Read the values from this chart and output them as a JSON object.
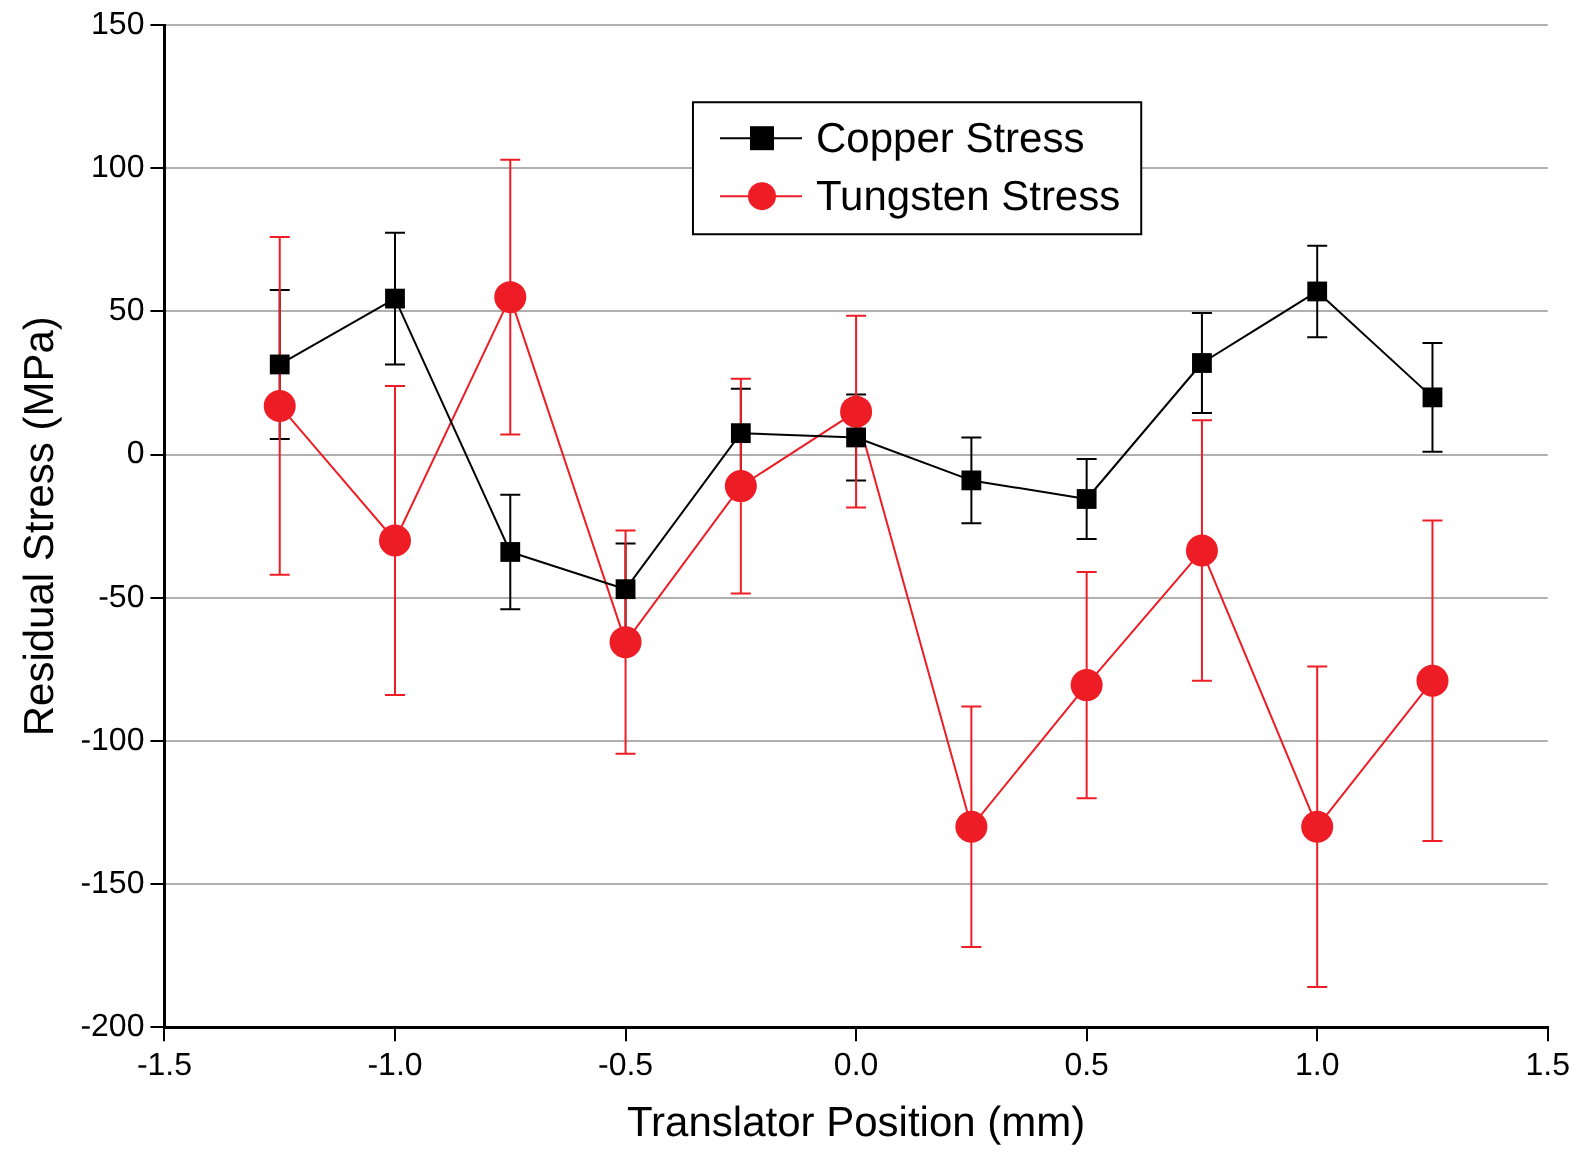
{
  "chart_data": {
    "type": "line",
    "xlabel": "Translator Position (mm)",
    "ylabel": "Residual Stress (MPa)",
    "x": [
      -1.25,
      -1.0,
      -0.75,
      -0.5,
      -0.25,
      0.0,
      0.25,
      0.5,
      0.75,
      1.0,
      1.25
    ],
    "series": [
      {
        "name": "Copper Stress",
        "color": "#000000",
        "marker": "square",
        "values": [
          31.5,
          54.5,
          -34,
          -47,
          7.5,
          6,
          -9,
          -15.5,
          32,
          57,
          20
        ],
        "errors": [
          26,
          23,
          20,
          16,
          15.5,
          15,
          15,
          14,
          17.5,
          16,
          19
        ]
      },
      {
        "name": "Tungsten Stress",
        "color": "#ee1c25",
        "marker": "circle",
        "values": [
          17,
          -30,
          55,
          -65.5,
          -11,
          15,
          -130,
          -80.5,
          -33.5,
          -130,
          -79
        ],
        "errors": [
          59,
          54,
          48,
          39,
          37.5,
          33.5,
          42,
          39.5,
          45.5,
          56,
          56
        ]
      }
    ],
    "xlim": [
      -1.5,
      1.5
    ],
    "xticks": [
      {
        "value": -1.5,
        "label": "-1.5"
      },
      {
        "value": -1,
        "label": "-1.0"
      },
      {
        "value": -0.5,
        "label": "-0.5"
      },
      {
        "value": 0,
        "label": "0.0"
      },
      {
        "value": 0.5,
        "label": "0.5"
      },
      {
        "value": 1,
        "label": "1.0"
      },
      {
        "value": 1.5,
        "label": "1.5"
      }
    ],
    "ylim": [
      -200,
      150
    ],
    "yticks": [
      -200,
      -150,
      -100,
      -50,
      0,
      50,
      100,
      150
    ],
    "grid": "y",
    "legend": "top",
    "line_style": "solid"
  }
}
